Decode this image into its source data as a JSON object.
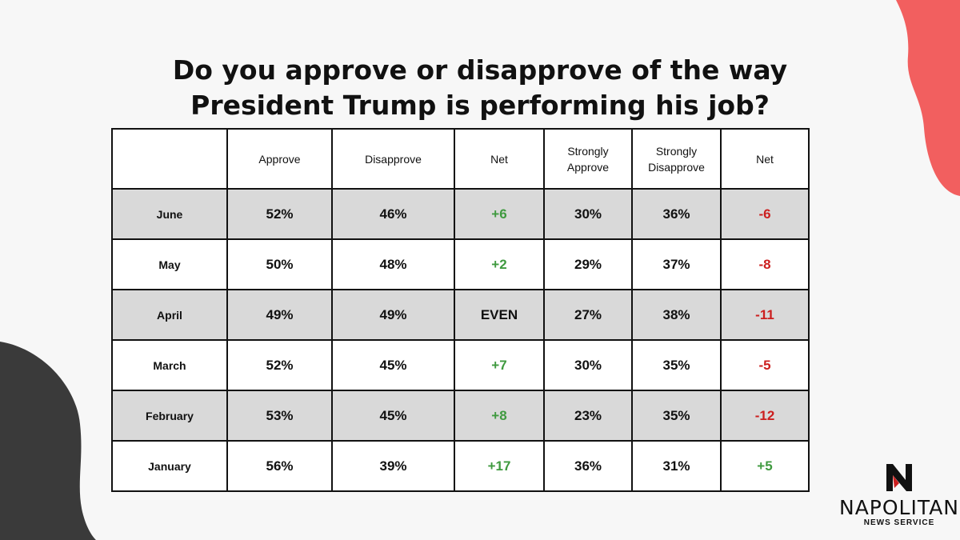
{
  "title_line1": "Do you approve or disapprove of the way",
  "title_line2": "President Trump is performing his job?",
  "colors": {
    "positive": "#3f9a3f",
    "negative": "#cc1f1f",
    "neutral": "#111111",
    "shade": "#d9d9d9",
    "accent_blob": "#f25f5f",
    "dark_blob": "#3a3a3a"
  },
  "chart_data": {
    "type": "table",
    "columns": [
      "",
      "Approve",
      "Disapprove",
      "Net",
      "Strongly Approve",
      "Strongly Disapprove",
      "Net"
    ],
    "rows": [
      {
        "month": "June",
        "approve": "52%",
        "disapprove": "46%",
        "net": "+6",
        "strongly_approve": "30%",
        "strongly_disapprove": "36%",
        "strong_net": "-6",
        "net_color": "positive",
        "strong_net_color": "negative"
      },
      {
        "month": "May",
        "approve": "50%",
        "disapprove": "48%",
        "net": "+2",
        "strongly_approve": "29%",
        "strongly_disapprove": "37%",
        "strong_net": "-8",
        "net_color": "positive",
        "strong_net_color": "negative"
      },
      {
        "month": "April",
        "approve": "49%",
        "disapprove": "49%",
        "net": "EVEN",
        "strongly_approve": "27%",
        "strongly_disapprove": "38%",
        "strong_net": "-11",
        "net_color": "neutral",
        "strong_net_color": "negative"
      },
      {
        "month": "March",
        "approve": "52%",
        "disapprove": "45%",
        "net": "+7",
        "strongly_approve": "30%",
        "strongly_disapprove": "35%",
        "strong_net": "-5",
        "net_color": "positive",
        "strong_net_color": "negative"
      },
      {
        "month": "February",
        "approve": "53%",
        "disapprove": "45%",
        "net": "+8",
        "strongly_approve": "23%",
        "strongly_disapprove": "35%",
        "strong_net": "-12",
        "net_color": "positive",
        "strong_net_color": "negative"
      },
      {
        "month": "January",
        "approve": "56%",
        "disapprove": "39%",
        "net": "+17",
        "strongly_approve": "36%",
        "strongly_disapprove": "31%",
        "strong_net": "+5",
        "net_color": "positive",
        "strong_net_color": "positive"
      }
    ]
  },
  "logo": {
    "name": "NAPOLITAN",
    "subtitle": "NEWS SERVICE",
    "mark_icon": "napolitan-n-logo-icon"
  }
}
